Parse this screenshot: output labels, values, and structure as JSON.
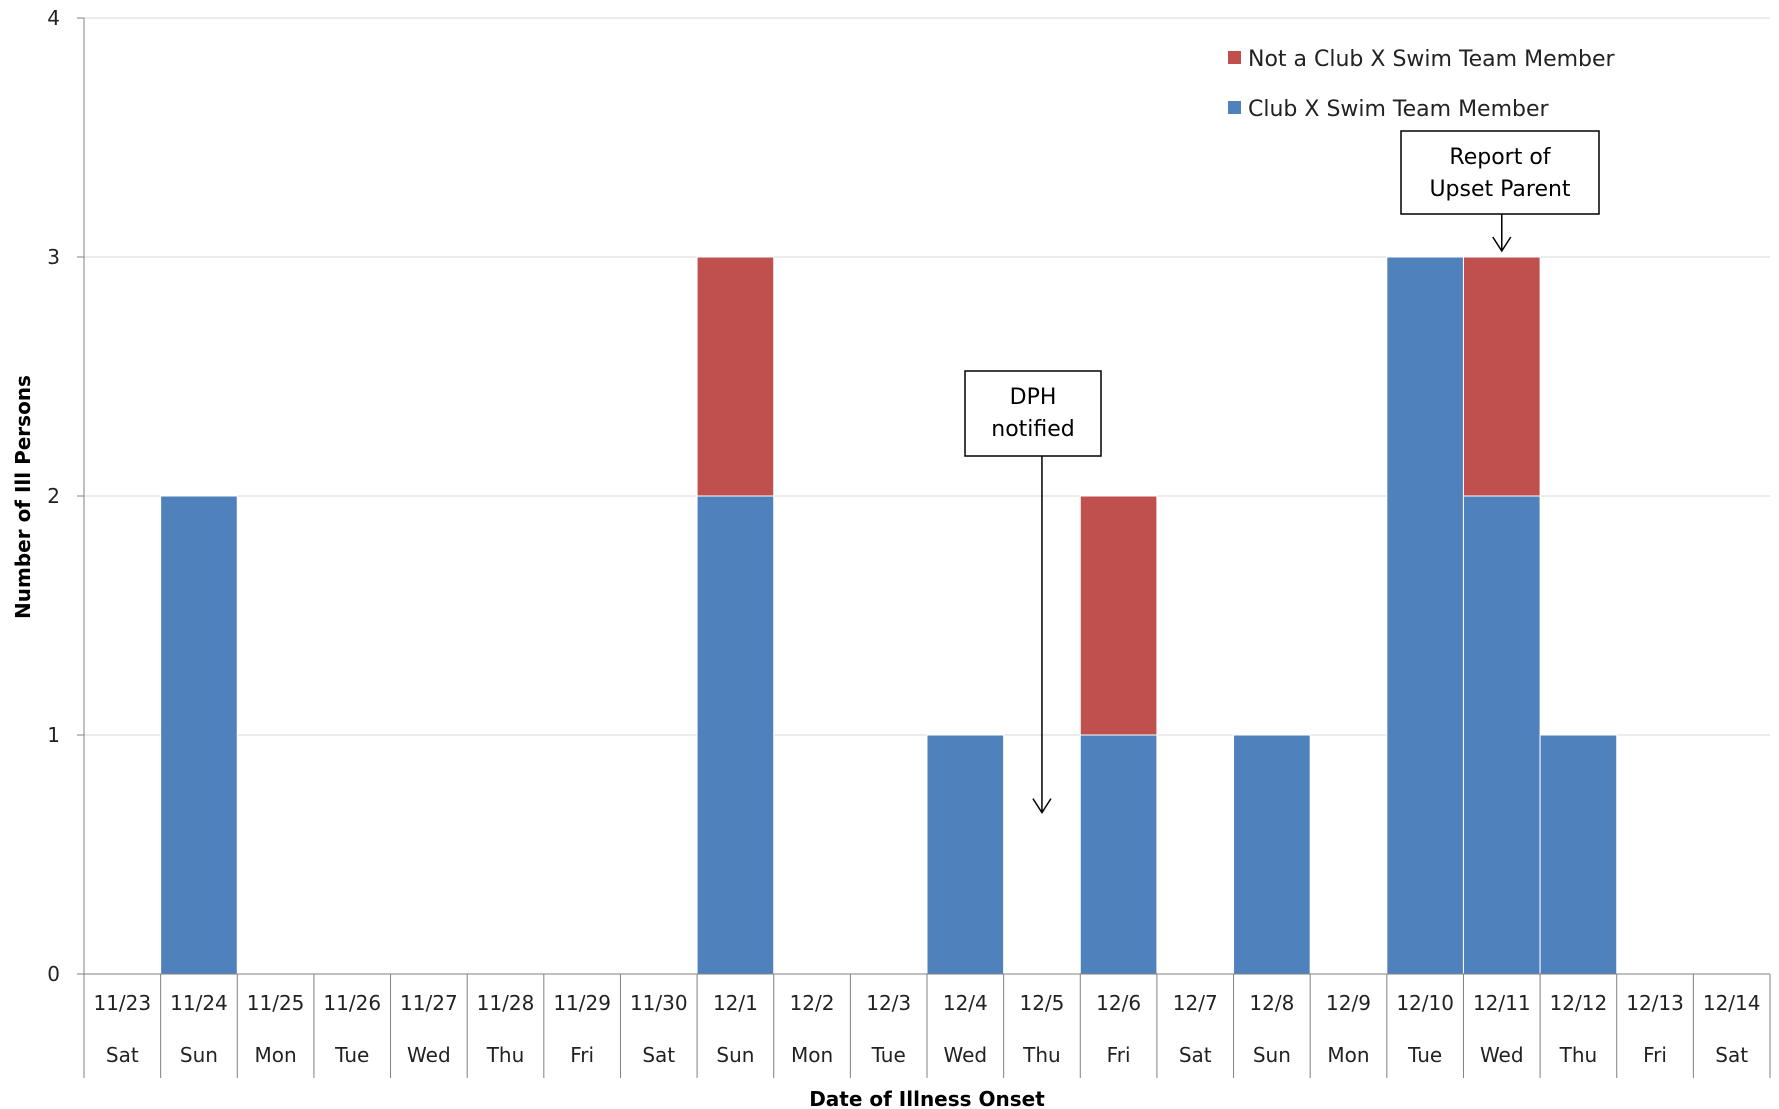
{
  "chart_data": {
    "type": "bar",
    "stacked": true,
    "title": "",
    "xlabel": "Date of Illness Onset",
    "ylabel": "Number of Ill Persons",
    "ylim": [
      0,
      4
    ],
    "yticks": [
      "0",
      "1",
      "2",
      "3",
      "4"
    ],
    "grid": true,
    "legend_position": "top-right",
    "categories": [
      "11/23",
      "11/24",
      "11/25",
      "11/26",
      "11/27",
      "11/28",
      "11/29",
      "11/30",
      "12/1",
      "12/2",
      "12/3",
      "12/4",
      "12/5",
      "12/6",
      "12/7",
      "12/8",
      "12/9",
      "12/10",
      "12/11",
      "12/12",
      "12/13",
      "12/14"
    ],
    "weekdays": [
      "Sat",
      "Sun",
      "Mon",
      "Tue",
      "Wed",
      "Thu",
      "Fri",
      "Sat",
      "Sun",
      "Mon",
      "Tue",
      "Wed",
      "Thu",
      "Fri",
      "Sat",
      "Sun",
      "Mon",
      "Tue",
      "Wed",
      "Thu",
      "Fri",
      "Sat"
    ],
    "series": [
      {
        "name": "Club X Swim Team Member",
        "color": "#4f81bd",
        "values": [
          0,
          2,
          0,
          0,
          0,
          0,
          0,
          0,
          2,
          0,
          0,
          1,
          0,
          1,
          0,
          1,
          0,
          3,
          2,
          1,
          0,
          0
        ]
      },
      {
        "name": "Not a Club X Swim Team Member",
        "color": "#c0504d",
        "values": [
          0,
          0,
          0,
          0,
          0,
          0,
          0,
          0,
          1,
          0,
          0,
          0,
          0,
          1,
          0,
          0,
          0,
          0,
          1,
          0,
          0,
          0
        ]
      }
    ],
    "legend_order": [
      1,
      0
    ],
    "annotations": [
      {
        "lines": [
          "DPH",
          "notified"
        ],
        "category": "12/5",
        "points_to_value": 0.65
      },
      {
        "lines": [
          "Report of",
          "Upset Parent"
        ],
        "category": "12/11",
        "points_to_value": 3.0
      }
    ]
  }
}
